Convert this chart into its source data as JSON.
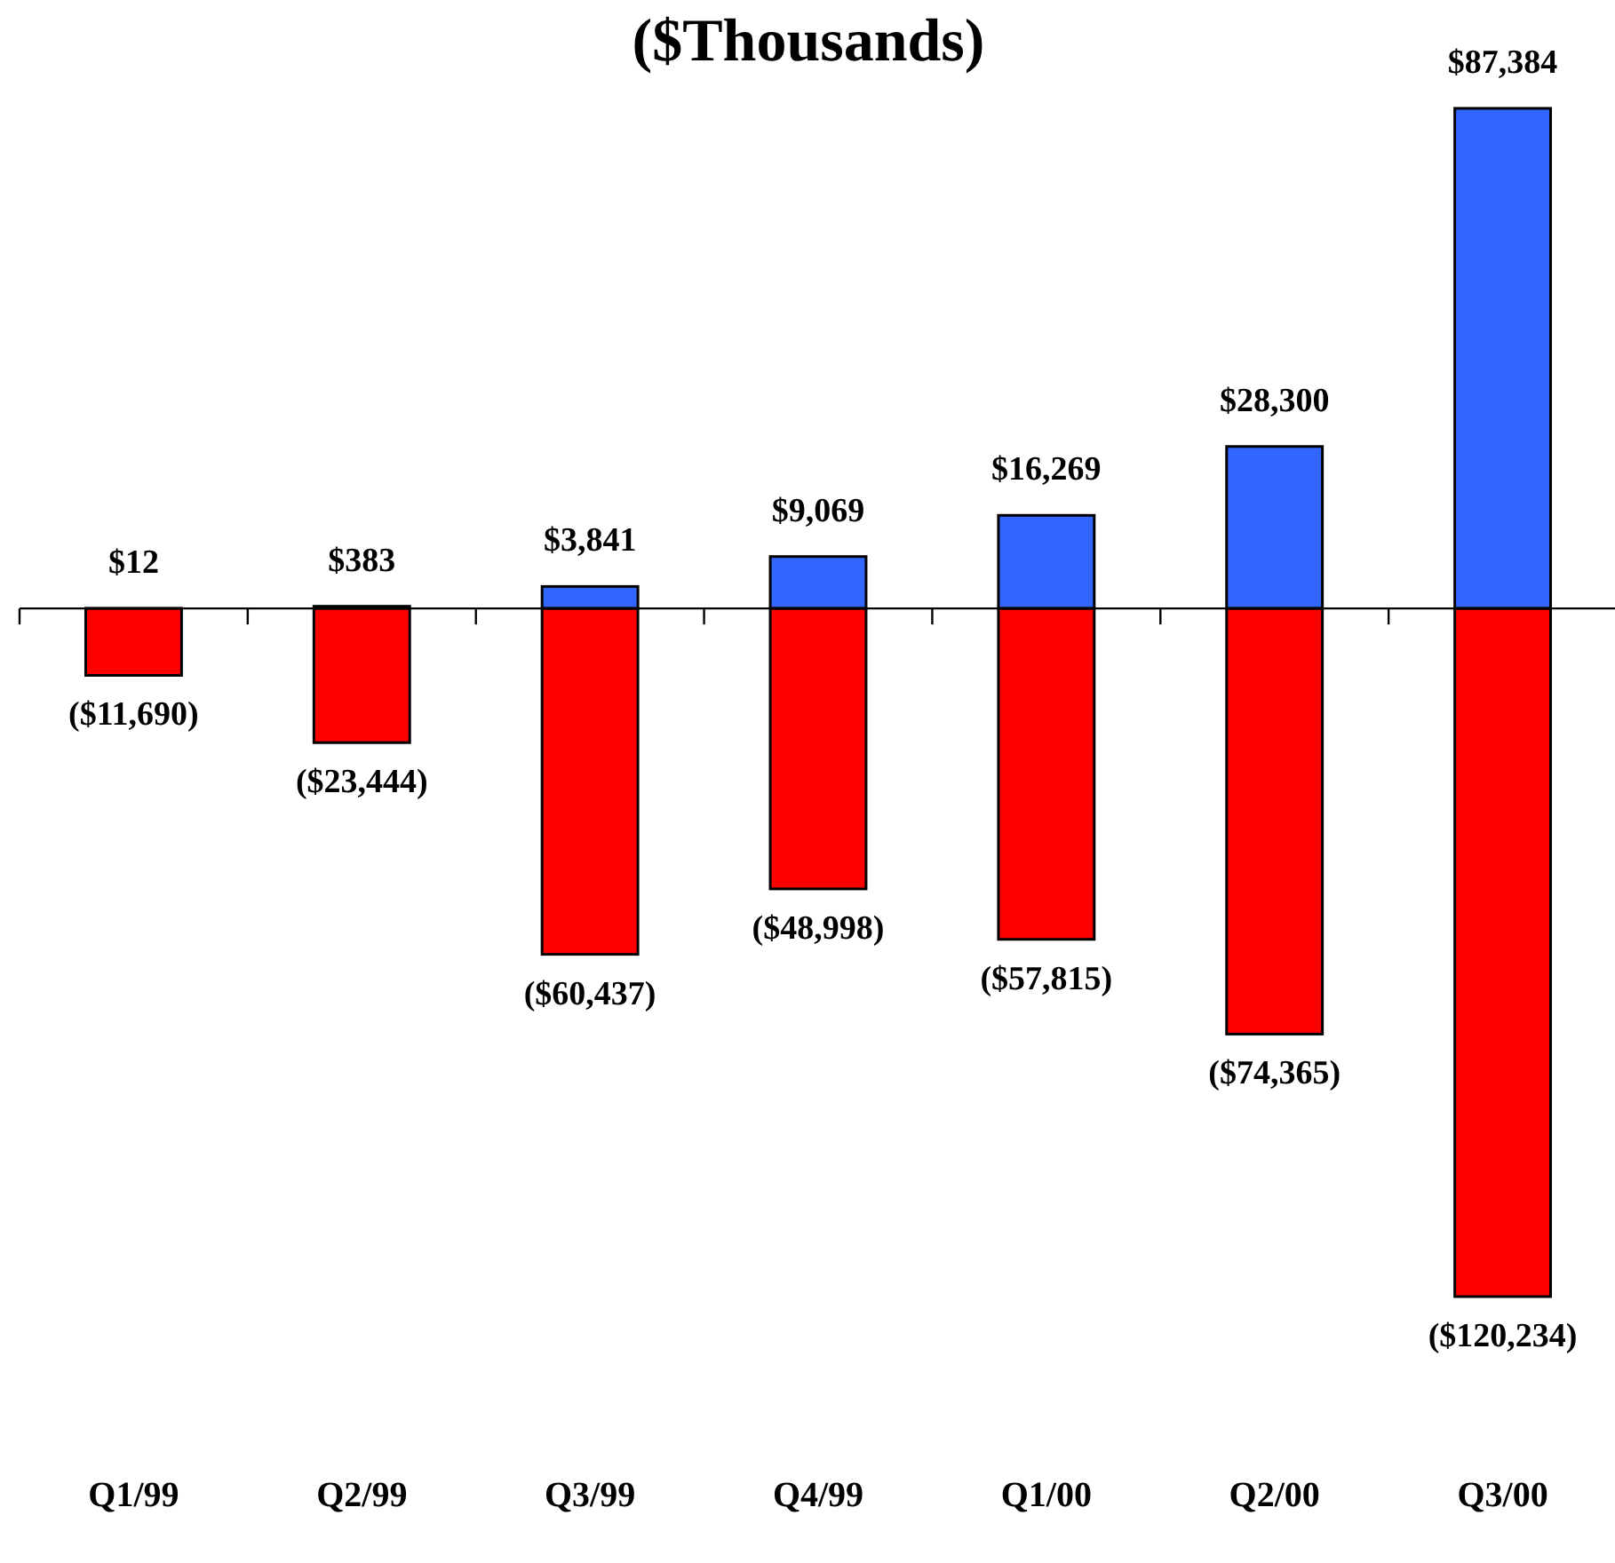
{
  "chart_data": {
    "type": "bar",
    "title": "($Thousands)",
    "categories": [
      "Q1/99",
      "Q2/99",
      "Q3/99",
      "Q4/99",
      "Q1/00",
      "Q2/00",
      "Q3/00"
    ],
    "series": [
      {
        "color": "#3366ff",
        "values": [
          12,
          383,
          3841,
          9069,
          16269,
          28300,
          87384
        ],
        "value_labels": [
          "$12",
          "$383",
          "$3,841",
          "$9,069",
          "$16,269",
          "$28,300",
          "$87,384"
        ]
      },
      {
        "color": "#ff0000",
        "values": [
          -11690,
          -23444,
          -60437,
          -48998,
          -57815,
          -74365,
          -120234
        ],
        "value_labels": [
          "($11,690)",
          "($23,444)",
          "($60,437)",
          "($48,998)",
          "($57,815)",
          "($74,365)",
          "($120,234)"
        ]
      }
    ],
    "stacked": true
  }
}
